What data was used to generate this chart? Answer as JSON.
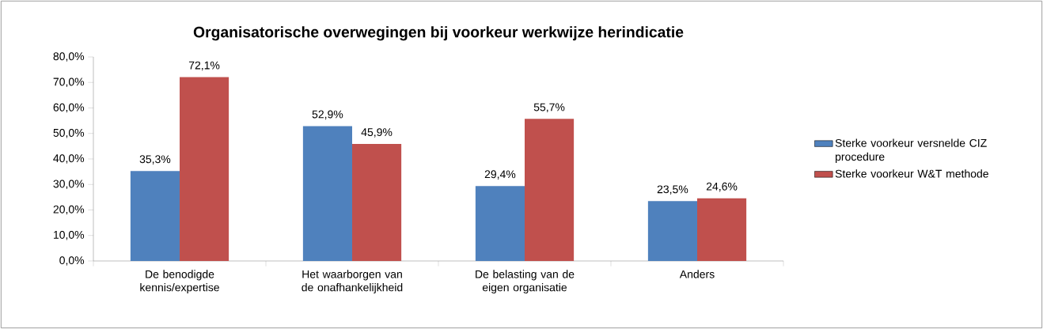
{
  "chart_data": {
    "type": "bar",
    "title": "Organisatorische overwegingen bij voorkeur werkwijze  herindicatie",
    "categories": [
      "De benodigde kennis/expertise",
      "Het waarborgen van de onafhankelijkheid",
      "De belasting van de eigen organisatie",
      "Anders"
    ],
    "series": [
      {
        "name": "Sterke voorkeur versnelde CIZ procedure",
        "color": "#4f81bd",
        "values": [
          35.3,
          52.9,
          29.4,
          23.5
        ],
        "value_labels": [
          "35,3%",
          "52,9%",
          "29,4%",
          "23,5%"
        ]
      },
      {
        "name": "Sterke voorkeur W&T methode",
        "color": "#c0504d",
        "values": [
          72.1,
          45.9,
          55.7,
          24.6
        ],
        "value_labels": [
          "72,1%",
          "45,9%",
          "55,7%",
          "24,6%"
        ]
      }
    ],
    "ylim": [
      0,
      80
    ],
    "yticks": [
      {
        "value": 0,
        "label": "0,0%"
      },
      {
        "value": 10,
        "label": "10,0%"
      },
      {
        "value": 20,
        "label": "20,0%"
      },
      {
        "value": 30,
        "label": "30,0%"
      },
      {
        "value": 40,
        "label": "40,0%"
      },
      {
        "value": 50,
        "label": "50,0%"
      },
      {
        "value": 60,
        "label": "60,0%"
      },
      {
        "value": 70,
        "label": "70,0%"
      },
      {
        "value": 80,
        "label": "80,0%"
      }
    ],
    "grid": false,
    "legend": "right"
  }
}
